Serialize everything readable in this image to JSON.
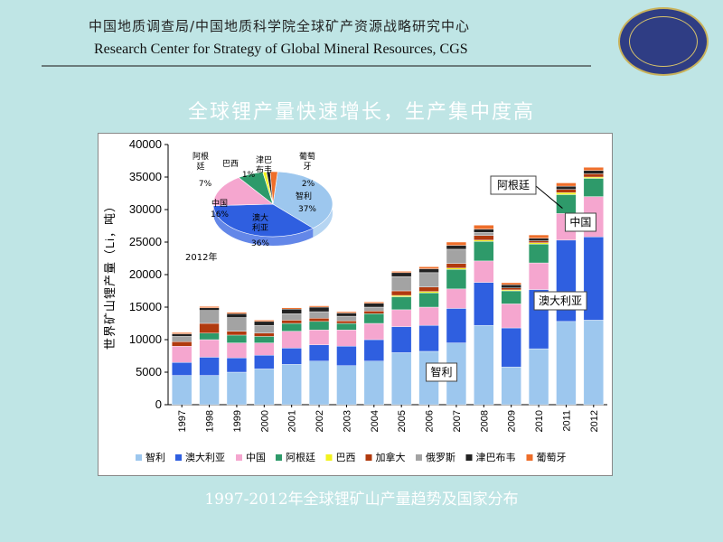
{
  "header": {
    "org_cn": "中国地质调查局/中国地质科学院全球矿产资源战略研究中心",
    "org_en": "Research Center for Strategy of Global Mineral Resources, CGS"
  },
  "slide_title": "全球锂产量快速增长，生产集中度高",
  "caption": "1997-2012年全球锂矿山产量趋势及国家分布",
  "colors": {
    "智利": "#9dc7ee",
    "澳大利亚": "#2f5fe0",
    "中国": "#f5a6cf",
    "阿根廷": "#2e9a6a",
    "巴西": "#f2f21e",
    "加拿大": "#b13a0e",
    "俄罗斯": "#a3a3a3",
    "津巴布韦": "#222222",
    "葡萄牙": "#ee6e2a"
  },
  "chart_data": [
    {
      "type": "bar",
      "stacked": true,
      "ylabel": "世界矿山锂产量（Li，吨）",
      "ylim": [
        0,
        40000
      ],
      "yticks": [
        0,
        5000,
        10000,
        15000,
        20000,
        25000,
        30000,
        35000,
        40000
      ],
      "categories": [
        "1997",
        "1998",
        "1999",
        "2000",
        "2001",
        "2002",
        "2003",
        "2004",
        "2005",
        "2006",
        "2007",
        "2008",
        "2009",
        "2010",
        "2011",
        "2012"
      ],
      "legend_position": "bottom",
      "series": [
        {
          "name": "智利",
          "values": [
            4500,
            4500,
            5000,
            5500,
            6200,
            6700,
            6000,
            6700,
            8000,
            8200,
            9500,
            12200,
            5800,
            8600,
            12800,
            13000
          ]
        },
        {
          "name": "澳大利亚",
          "values": [
            2000,
            2800,
            2200,
            2100,
            2500,
            2500,
            3000,
            3300,
            4000,
            4000,
            5300,
            6600,
            6000,
            9100,
            12500,
            12800
          ]
        },
        {
          "name": "中国",
          "values": [
            2500,
            2700,
            2300,
            1900,
            2600,
            2300,
            2500,
            2500,
            2600,
            2800,
            3000,
            3300,
            3700,
            4100,
            4100,
            6200
          ]
        },
        {
          "name": "阿根廷",
          "values": [
            0,
            1000,
            1200,
            1000,
            1200,
            1300,
            1000,
            1500,
            2000,
            2200,
            3000,
            3000,
            2000,
            2900,
            2900,
            2800
          ]
        },
        {
          "name": "巴西",
          "values": [
            0,
            0,
            0,
            0,
            0,
            0,
            0,
            0,
            200,
            200,
            200,
            200,
            150,
            200,
            300,
            200
          ]
        },
        {
          "name": "加拿大",
          "values": [
            700,
            1500,
            600,
            500,
            500,
            500,
            400,
            400,
            700,
            700,
            700,
            700,
            300,
            300,
            500,
            500
          ]
        },
        {
          "name": "俄罗斯",
          "values": [
            800,
            2000,
            2100,
            1200,
            1000,
            1000,
            700,
            600,
            2200,
            2200,
            2200,
            500,
            0,
            0,
            0,
            0
          ]
        },
        {
          "name": "津巴布韦",
          "values": [
            400,
            400,
            600,
            600,
            700,
            700,
            500,
            600,
            600,
            600,
            600,
            500,
            500,
            400,
            500,
            500
          ]
        },
        {
          "name": "葡萄牙",
          "values": [
            200,
            200,
            200,
            200,
            200,
            200,
            200,
            200,
            200,
            300,
            500,
            600,
            300,
            500,
            500,
            500
          ]
        }
      ],
      "annotations": [
        {
          "text": "智利",
          "category": "2006"
        },
        {
          "text": "澳大利亚",
          "category": "2010"
        },
        {
          "text": "中国",
          "category": "2011"
        },
        {
          "text": "阿根廷",
          "category": "2011"
        }
      ]
    },
    {
      "type": "pie",
      "title": "2012年",
      "slices": [
        {
          "label": "智利",
          "value": 37,
          "text": "37%"
        },
        {
          "label": "澳大利亚",
          "value": 36,
          "text": "36%"
        },
        {
          "label": "中国",
          "value": 16,
          "text": "16%"
        },
        {
          "label": "阿根廷",
          "value": 7,
          "text": "7%"
        },
        {
          "label": "巴西",
          "value": 1,
          "text": "1%"
        },
        {
          "label": "津巴布韦",
          "value": 1,
          "text": ""
        },
        {
          "label": "葡萄牙",
          "value": 2,
          "text": "2%"
        }
      ]
    }
  ]
}
